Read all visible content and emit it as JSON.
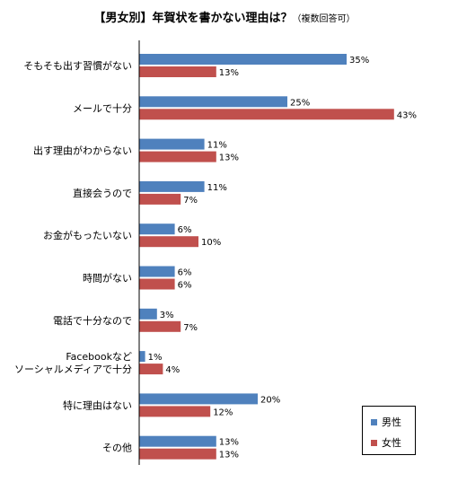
{
  "chart_data": {
    "type": "bar",
    "orientation": "horizontal",
    "title": "【男女別】年賀状を書かない理由は？",
    "subtitle": "（複数回答可）",
    "categories": [
      [
        "そもそも出す習慣がない"
      ],
      [
        "メールで十分"
      ],
      [
        "出す理由がわからない"
      ],
      [
        "直接会うので"
      ],
      [
        "お金がもったいない"
      ],
      [
        "時間がない"
      ],
      [
        "電話で十分なので"
      ],
      [
        "Facebookなど",
        "ソーシャルメディアで十分"
      ],
      [
        "特に理由はない"
      ],
      [
        "その他"
      ]
    ],
    "series": [
      {
        "name": "男性",
        "color": "#4f81bd",
        "values": [
          35,
          25,
          11,
          11,
          6,
          6,
          3,
          1,
          20,
          13
        ],
        "labels": [
          "35%",
          "25%",
          "11%",
          "11%",
          "6%",
          "6%",
          "3%",
          "1%",
          "20%",
          "13%"
        ]
      },
      {
        "name": "女性",
        "color": "#c0504d",
        "values": [
          13,
          43,
          13,
          7,
          10,
          6,
          7,
          4,
          12,
          13
        ],
        "labels": [
          "13%",
          "43%",
          "13%",
          "7%",
          "10%",
          "6%",
          "7%",
          "4%",
          "12%",
          "13%"
        ]
      }
    ],
    "xlim": [
      0,
      45
    ],
    "grid": false,
    "legend_position": "bottom-right"
  }
}
